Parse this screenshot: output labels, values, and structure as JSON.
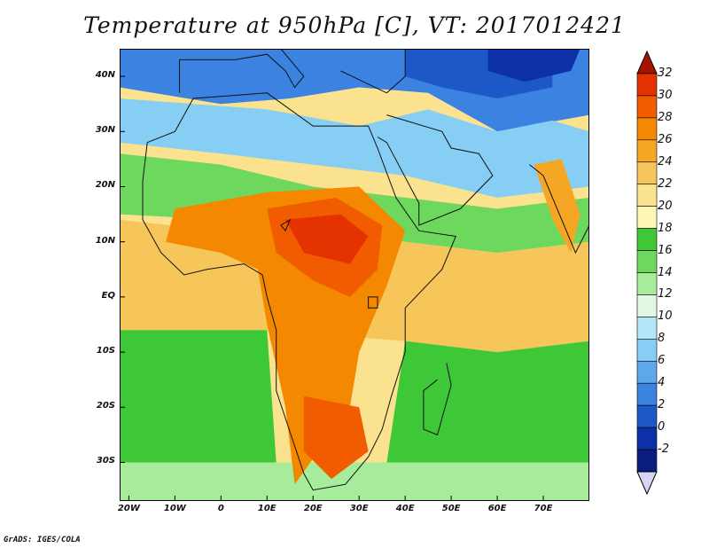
{
  "title": "Temperature at 950hPa [C], VT: 2017012421",
  "credit": "GrADS: IGES/COLA",
  "map": {
    "lon_range": [
      -22,
      80
    ],
    "lat_range": [
      -37,
      45
    ],
    "lat_ticks": [
      {
        "value": 40,
        "label": "40N"
      },
      {
        "value": 30,
        "label": "30N"
      },
      {
        "value": 20,
        "label": "20N"
      },
      {
        "value": 10,
        "label": "10N"
      },
      {
        "value": 0,
        "label": "EQ"
      },
      {
        "value": -10,
        "label": "10S"
      },
      {
        "value": -20,
        "label": "20S"
      },
      {
        "value": -30,
        "label": "30S"
      }
    ],
    "lon_ticks": [
      {
        "value": -20,
        "label": "20W"
      },
      {
        "value": -10,
        "label": "10W"
      },
      {
        "value": 0,
        "label": "0"
      },
      {
        "value": 10,
        "label": "10E"
      },
      {
        "value": 20,
        "label": "20E"
      },
      {
        "value": 30,
        "label": "30E"
      },
      {
        "value": 40,
        "label": "40E"
      },
      {
        "value": 50,
        "label": "50E"
      },
      {
        "value": 60,
        "label": "60E"
      },
      {
        "value": 70,
        "label": "70E"
      }
    ]
  },
  "colorbar": {
    "levels": [
      "32",
      "30",
      "28",
      "26",
      "24",
      "22",
      "20",
      "18",
      "16",
      "14",
      "12",
      "10",
      "8",
      "6",
      "4",
      "2",
      "0",
      "-2"
    ],
    "colors": [
      "#a61400",
      "#e43200",
      "#f25c00",
      "#f48800",
      "#f4a624",
      "#f6c65a",
      "#fae28e",
      "#fdf6b4",
      "#3ec838",
      "#6ed85e",
      "#a6ec9a",
      "#e2f8e2",
      "#b4e6f8",
      "#86cef4",
      "#5ea8ea",
      "#3c82e0",
      "#1c58c8",
      "#0c30a8",
      "#0a1c7c",
      "#d8d4f4"
    ]
  },
  "regions": [
    {
      "name": "europe-cold",
      "color": "#3c82e0",
      "points": [
        [
          -22,
          45
        ],
        [
          80,
          45
        ],
        [
          80,
          33
        ],
        [
          60,
          30
        ],
        [
          45,
          37
        ],
        [
          30,
          38
        ],
        [
          15,
          36
        ],
        [
          0,
          35
        ],
        [
          -22,
          38
        ]
      ]
    },
    {
      "name": "deep-cold",
      "color": "#1c58c8",
      "points": [
        [
          40,
          45
        ],
        [
          72,
          45
        ],
        [
          72,
          38
        ],
        [
          60,
          36
        ],
        [
          48,
          38
        ],
        [
          40,
          40
        ]
      ]
    },
    {
      "name": "coldest",
      "color": "#0c30a8",
      "points": [
        [
          58,
          45
        ],
        [
          78,
          45
        ],
        [
          76,
          41
        ],
        [
          66,
          39
        ],
        [
          58,
          41
        ]
      ]
    },
    {
      "name": "north-africa-mild",
      "color": "#86cef4",
      "points": [
        [
          -22,
          36
        ],
        [
          10,
          34
        ],
        [
          30,
          31
        ],
        [
          45,
          34
        ],
        [
          60,
          30
        ],
        [
          72,
          32
        ],
        [
          80,
          30
        ],
        [
          80,
          20
        ],
        [
          60,
          18
        ],
        [
          40,
          22
        ],
        [
          20,
          24
        ],
        [
          0,
          26
        ],
        [
          -22,
          28
        ]
      ]
    },
    {
      "name": "sahel-green",
      "color": "#6ed85e",
      "points": [
        [
          -22,
          26
        ],
        [
          0,
          24
        ],
        [
          20,
          20
        ],
        [
          40,
          18
        ],
        [
          60,
          16
        ],
        [
          80,
          18
        ],
        [
          80,
          10
        ],
        [
          60,
          8
        ],
        [
          40,
          10
        ],
        [
          20,
          12
        ],
        [
          0,
          14
        ],
        [
          -22,
          15
        ]
      ]
    },
    {
      "name": "tropical-atlantic",
      "color": "#f6c65a",
      "points": [
        [
          -22,
          14
        ],
        [
          0,
          12
        ],
        [
          20,
          10
        ],
        [
          40,
          10
        ],
        [
          60,
          8
        ],
        [
          80,
          10
        ],
        [
          80,
          -8
        ],
        [
          60,
          -10
        ],
        [
          40,
          -8
        ],
        [
          10,
          -6
        ],
        [
          -22,
          -6
        ]
      ]
    },
    {
      "name": "south-atlantic-green",
      "color": "#3ec838",
      "points": [
        [
          -22,
          -6
        ],
        [
          10,
          -6
        ],
        [
          12,
          -30
        ],
        [
          -22,
          -30
        ]
      ]
    },
    {
      "name": "south-indian-green",
      "color": "#3ec838",
      "points": [
        [
          40,
          -8
        ],
        [
          60,
          -10
        ],
        [
          80,
          -8
        ],
        [
          80,
          -30
        ],
        [
          36,
          -30
        ]
      ]
    },
    {
      "name": "south-cold",
      "color": "#a6ec9a",
      "points": [
        [
          -22,
          -30
        ],
        [
          80,
          -30
        ],
        [
          80,
          -37
        ],
        [
          -22,
          -37
        ]
      ]
    },
    {
      "name": "hot-central",
      "color": "#f48800",
      "points": [
        [
          -10,
          16
        ],
        [
          10,
          19
        ],
        [
          30,
          20
        ],
        [
          40,
          12
        ],
        [
          36,
          2
        ],
        [
          30,
          -10
        ],
        [
          28,
          -20
        ],
        [
          16,
          -34
        ],
        [
          14,
          -20
        ],
        [
          10,
          -5
        ],
        [
          8,
          5
        ],
        [
          0,
          8
        ],
        [
          -12,
          10
        ]
      ]
    },
    {
      "name": "hotter-central",
      "color": "#f25c00",
      "points": [
        [
          10,
          16
        ],
        [
          25,
          18
        ],
        [
          35,
          13
        ],
        [
          34,
          5
        ],
        [
          28,
          0
        ],
        [
          20,
          3
        ],
        [
          12,
          8
        ]
      ]
    },
    {
      "name": "hottest-central",
      "color": "#e43200",
      "points": [
        [
          14,
          14
        ],
        [
          26,
          15
        ],
        [
          32,
          11
        ],
        [
          28,
          6
        ],
        [
          18,
          8
        ]
      ]
    },
    {
      "name": "hot-south",
      "color": "#f25c00",
      "points": [
        [
          18,
          -18
        ],
        [
          30,
          -20
        ],
        [
          32,
          -28
        ],
        [
          24,
          -33
        ],
        [
          18,
          -28
        ]
      ]
    },
    {
      "name": "india-warm",
      "color": "#f4a624",
      "points": [
        [
          68,
          24
        ],
        [
          74,
          25
        ],
        [
          78,
          15
        ],
        [
          76,
          8
        ],
        [
          72,
          14
        ]
      ]
    }
  ],
  "coastlines": [
    {
      "name": "africa",
      "points": [
        [
          -17,
          21
        ],
        [
          -16,
          28
        ],
        [
          -10,
          30
        ],
        [
          -6,
          36
        ],
        [
          10,
          37
        ],
        [
          20,
          31
        ],
        [
          32,
          31
        ],
        [
          34,
          27
        ],
        [
          38,
          18
        ],
        [
          43,
          12
        ],
        [
          51,
          11
        ],
        [
          48,
          5
        ],
        [
          40,
          -2
        ],
        [
          40,
          -10
        ],
        [
          37,
          -18
        ],
        [
          35,
          -24
        ],
        [
          32,
          -29
        ],
        [
          27,
          -34
        ],
        [
          20,
          -35
        ],
        [
          18,
          -32
        ],
        [
          12,
          -17
        ],
        [
          12,
          -6
        ],
        [
          10,
          0
        ],
        [
          9,
          4
        ],
        [
          5,
          6
        ],
        [
          -3,
          5
        ],
        [
          -8,
          4
        ],
        [
          -13,
          8
        ],
        [
          -17,
          14
        ],
        [
          -17,
          21
        ]
      ]
    },
    {
      "name": "arabia",
      "points": [
        [
          34,
          29
        ],
        [
          36,
          28
        ],
        [
          43,
          17
        ],
        [
          43,
          13
        ],
        [
          52,
          16
        ],
        [
          59,
          22
        ],
        [
          56,
          26
        ],
        [
          50,
          27
        ],
        [
          48,
          30
        ],
        [
          36,
          33
        ]
      ]
    },
    {
      "name": "madagascar",
      "points": [
        [
          49,
          -12
        ],
        [
          50,
          -16
        ],
        [
          47,
          -25
        ],
        [
          44,
          -24
        ],
        [
          44,
          -17
        ],
        [
          47,
          -15
        ]
      ]
    },
    {
      "name": "india",
      "points": [
        [
          67,
          24
        ],
        [
          70,
          22
        ],
        [
          73,
          16
        ],
        [
          77,
          8
        ],
        [
          80,
          13
        ],
        [
          80,
          22
        ]
      ]
    },
    {
      "name": "europe",
      "points": [
        [
          -9,
          37
        ],
        [
          -9,
          43
        ],
        [
          3,
          43
        ],
        [
          10,
          44
        ],
        [
          14,
          41
        ],
        [
          16,
          38
        ],
        [
          18,
          40
        ],
        [
          13,
          45
        ]
      ]
    },
    {
      "name": "anatolia",
      "points": [
        [
          26,
          41
        ],
        [
          36,
          37
        ],
        [
          40,
          40
        ],
        [
          40,
          45
        ]
      ]
    }
  ],
  "lakes": [
    {
      "name": "lake-victoria",
      "points": [
        [
          32,
          0
        ],
        [
          34,
          0
        ],
        [
          34,
          -2
        ],
        [
          32,
          -2
        ]
      ]
    },
    {
      "name": "lake-chad",
      "points": [
        [
          13,
          13
        ],
        [
          15,
          14
        ],
        [
          14,
          12
        ]
      ]
    }
  ]
}
